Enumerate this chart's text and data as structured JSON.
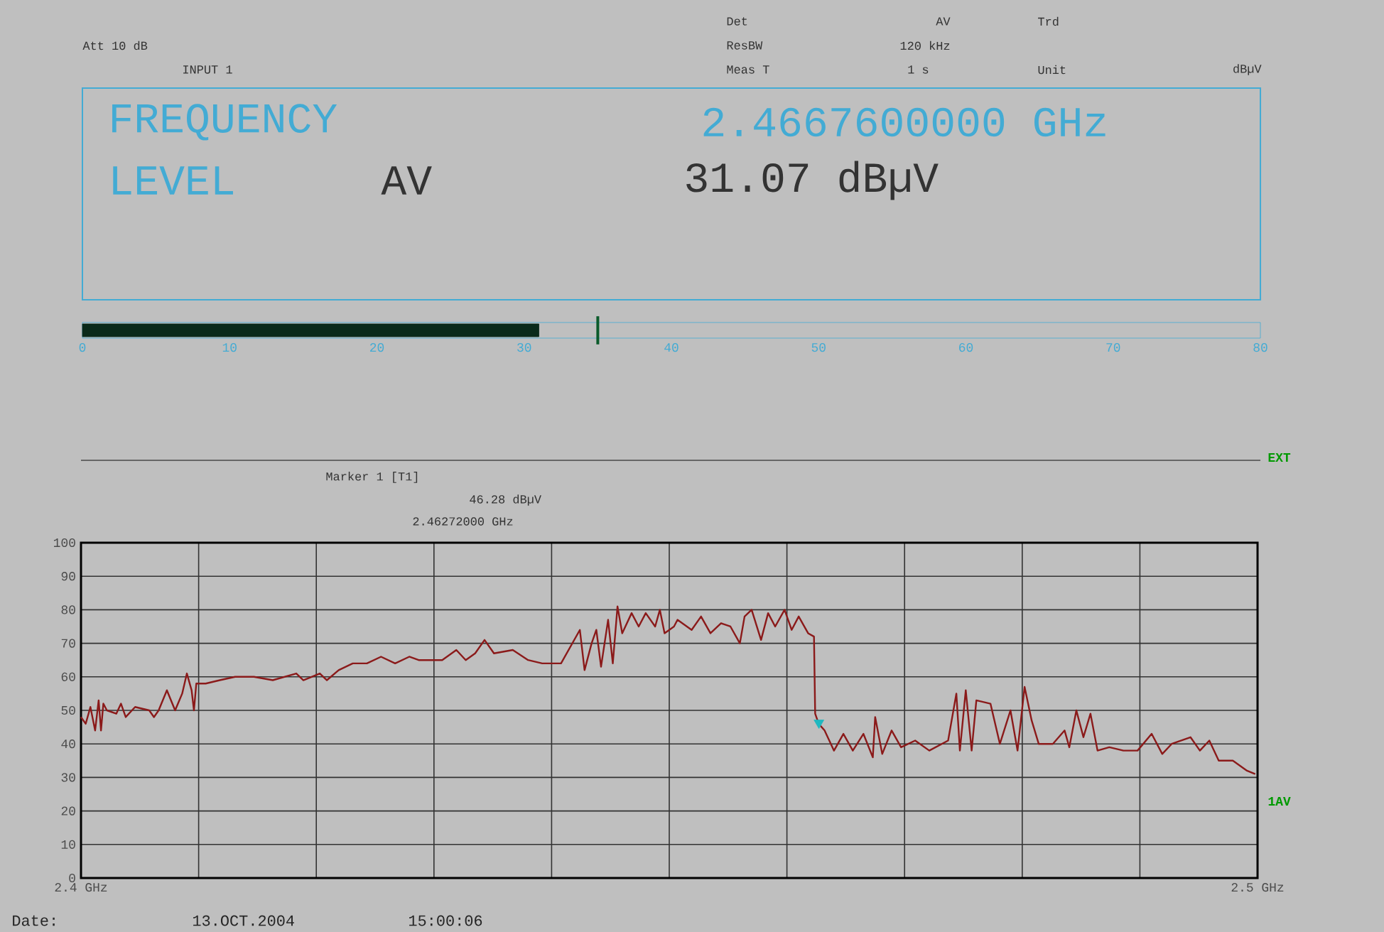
{
  "chart_data": [
    {
      "type": "bar",
      "orientation": "horizontal",
      "categories": [
        null
      ],
      "values": [
        31
      ],
      "color": "#0a2a1a",
      "xlim": [
        0,
        80
      ],
      "xticks": [
        0,
        10,
        20,
        30,
        40,
        50,
        60,
        70,
        80
      ],
      "tick_labels": "x",
      "ref_lines": [
        {
          "axis": "x",
          "value": 35,
          "color": "#0a5a2a"
        }
      ],
      "annotations": [
        "Att 10 dB",
        "INPUT 1",
        "Det",
        "AV",
        "Trd",
        "ResBW",
        "120 kHz",
        "Meas T",
        "1 s",
        "Unit",
        "dBµV",
        "FREQUENCY",
        "2.4667600000 GHz",
        "LEVEL",
        "AV",
        "31.07 dBµV"
      ]
    },
    {
      "type": "line",
      "grid": true,
      "xlim": [
        2.4,
        2.5
      ],
      "ylim": [
        0,
        100
      ],
      "xticks": [
        {
          "value": 2.4,
          "label": "2.4 GHz"
        },
        {
          "value": 2.41,
          "label": null
        },
        {
          "value": 2.42,
          "label": null
        },
        {
          "value": 2.43,
          "label": null
        },
        {
          "value": 2.44,
          "label": null
        },
        {
          "value": 2.45,
          "label": null
        },
        {
          "value": 2.46,
          "label": null
        },
        {
          "value": 2.47,
          "label": null
        },
        {
          "value": 2.48,
          "label": null
        },
        {
          "value": 2.49,
          "label": null
        },
        {
          "value": 2.5,
          "label": "2.5 GHz"
        }
      ],
      "yticks": [
        0,
        10,
        20,
        30,
        40,
        50,
        60,
        70,
        80,
        90,
        100
      ],
      "series": [
        {
          "color": "#8b1a1a",
          "x": [
            2.4,
            2.4004,
            2.4008,
            2.4012,
            2.4015,
            2.4017,
            2.4019,
            2.4022,
            2.403,
            2.4034,
            2.4038,
            2.4046,
            2.4058,
            2.4062,
            2.4066,
            2.4073,
            2.408,
            2.4086,
            2.409,
            2.4094,
            2.4096,
            2.4098,
            2.4106,
            2.4118,
            2.4131,
            2.4147,
            2.4163,
            2.4183,
            2.4189,
            2.4203,
            2.4209,
            2.4219,
            2.4231,
            2.4243,
            2.4255,
            2.4267,
            2.4279,
            2.4287,
            2.4307,
            2.4319,
            2.4327,
            2.4335,
            2.4343,
            2.4351,
            2.4367,
            2.438,
            2.4392,
            2.4408,
            2.4424,
            2.4428,
            2.4434,
            2.4438,
            2.4442,
            2.4448,
            2.4452,
            2.4456,
            2.446,
            2.4468,
            2.4474,
            2.448,
            2.4488,
            2.4492,
            2.4496,
            2.4504,
            2.4507,
            2.4519,
            2.4527,
            2.4535,
            2.4544,
            2.4552,
            2.456,
            2.4564,
            2.457,
            2.4578,
            2.4584,
            2.459,
            2.4598,
            2.4604,
            2.461,
            2.4618,
            2.4623,
            2.4624,
            2.4627,
            2.4632,
            2.464,
            2.4648,
            2.4656,
            2.4665,
            2.4673,
            2.4675,
            2.4681,
            2.4689,
            2.4697,
            2.4709,
            2.4721,
            2.4737,
            2.4744,
            2.4747,
            2.4752,
            2.4757,
            2.4761,
            2.4773,
            2.4781,
            2.479,
            2.4796,
            2.4802,
            2.4808,
            2.4814,
            2.4826,
            2.4836,
            2.484,
            2.4846,
            2.4852,
            2.4858,
            2.4864,
            2.4874,
            2.4886,
            2.4898,
            2.491,
            2.4919,
            2.4927,
            2.4943,
            2.4951,
            2.4959,
            2.4967,
            2.4979,
            2.4991,
            2.4998
          ],
          "values": [
            48,
            46,
            51,
            44,
            53,
            44,
            52,
            50,
            49,
            52,
            48,
            51,
            50,
            48,
            50,
            56,
            50,
            55,
            61,
            56,
            50,
            58,
            58,
            59,
            60,
            60,
            59,
            61,
            59,
            61,
            59,
            62,
            64,
            64,
            66,
            64,
            66,
            65,
            65,
            68,
            65,
            67,
            71,
            67,
            68,
            65,
            64,
            64,
            74,
            62,
            70,
            74,
            63,
            77,
            64,
            81,
            73,
            79,
            75,
            79,
            75,
            80,
            73,
            75,
            77,
            74,
            78,
            73,
            76,
            75,
            70,
            78,
            80,
            71,
            79,
            75,
            80,
            74,
            78,
            73,
            72,
            49,
            46,
            44,
            38,
            43,
            38,
            43,
            36,
            48,
            37,
            44,
            39,
            41,
            38,
            41,
            55,
            38,
            56,
            38,
            53,
            52,
            40,
            50,
            38,
            57,
            47,
            40,
            40,
            44,
            39,
            50,
            42,
            49,
            38,
            39,
            38,
            38,
            43,
            37,
            40,
            42,
            38,
            41,
            35,
            35,
            32,
            31
          ]
        },
        {
          "type": "scatter",
          "marker": "triangle",
          "color": "#20b8c0",
          "x": [
            2.46272
          ],
          "values": [
            46.28
          ]
        }
      ],
      "annotations": [
        "Marker 1 [T1]",
        "46.28 dBµV",
        "2.46272000 GHz",
        "EXT",
        "1AV",
        "Date:",
        "13.OCT.2004",
        "15:00:06"
      ]
    }
  ]
}
